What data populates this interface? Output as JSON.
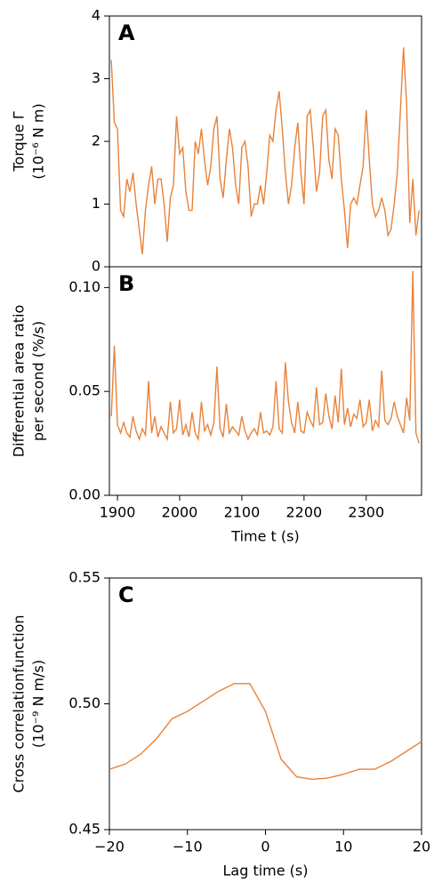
{
  "chart_data": [
    {
      "type": "line",
      "panel_label": "A",
      "ylabel": [
        "Torque Γ",
        "(10⁻⁶ N m)"
      ],
      "color": "#e8823a",
      "xlim": [
        1887,
        2389
      ],
      "ylim": [
        0,
        4
      ],
      "yticks": [
        0,
        1,
        2,
        3,
        4
      ],
      "x": [
        1890,
        1895,
        1900,
        1905,
        1910,
        1915,
        1920,
        1925,
        1930,
        1935,
        1940,
        1945,
        1950,
        1955,
        1960,
        1965,
        1970,
        1975,
        1980,
        1985,
        1990,
        1995,
        2000,
        2005,
        2010,
        2015,
        2020,
        2025,
        2030,
        2035,
        2040,
        2045,
        2050,
        2055,
        2060,
        2065,
        2070,
        2075,
        2080,
        2085,
        2090,
        2095,
        2100,
        2105,
        2110,
        2115,
        2120,
        2125,
        2130,
        2135,
        2140,
        2145,
        2150,
        2155,
        2160,
        2165,
        2170,
        2175,
        2180,
        2185,
        2190,
        2195,
        2200,
        2205,
        2210,
        2215,
        2220,
        2225,
        2230,
        2235,
        2240,
        2245,
        2250,
        2255,
        2260,
        2265,
        2270,
        2275,
        2280,
        2285,
        2290,
        2295,
        2300,
        2305,
        2310,
        2315,
        2320,
        2325,
        2330,
        2335,
        2340,
        2345,
        2350,
        2355,
        2360,
        2365,
        2370,
        2375,
        2380,
        2385
      ],
      "values": [
        3.3,
        2.3,
        2.2,
        0.9,
        0.8,
        1.4,
        1.2,
        1.5,
        1.0,
        0.6,
        0.2,
        0.9,
        1.3,
        1.6,
        1.0,
        1.4,
        1.4,
        1.0,
        0.4,
        1.1,
        1.3,
        2.4,
        1.8,
        1.9,
        1.2,
        0.9,
        0.9,
        2.0,
        1.8,
        2.2,
        1.7,
        1.3,
        1.6,
        2.2,
        2.4,
        1.4,
        1.1,
        1.7,
        2.2,
        1.9,
        1.3,
        1.0,
        1.9,
        2.0,
        1.6,
        0.8,
        1.0,
        1.0,
        1.3,
        1.0,
        1.5,
        2.1,
        2.0,
        2.5,
        2.8,
        2.2,
        1.5,
        1.0,
        1.3,
        1.9,
        2.3,
        1.5,
        1.0,
        2.4,
        2.5,
        1.9,
        1.2,
        1.5,
        2.4,
        2.5,
        1.7,
        1.4,
        2.2,
        2.1,
        1.4,
        0.9,
        0.3,
        1.0,
        1.1,
        1.0,
        1.3,
        1.6,
        2.5,
        1.7,
        1.0,
        0.8,
        0.9,
        1.1,
        0.9,
        0.5,
        0.6,
        1.0,
        1.5,
        2.5,
        3.5,
        2.6,
        0.7,
        1.4,
        0.5,
        0.9
      ]
    },
    {
      "type": "line",
      "panel_label": "B",
      "ylabel": [
        "Differential area ratio",
        "per second (%/s)"
      ],
      "xlabel": "Time t (s)",
      "color": "#e8823a",
      "xlim": [
        1887,
        2389
      ],
      "xticks": [
        1900,
        2000,
        2100,
        2200,
        2300
      ],
      "ylim": [
        0,
        0.11
      ],
      "yticks": [
        {
          "value": 0,
          "label": "0.00"
        },
        {
          "value": 0.05,
          "label": "0.05"
        },
        {
          "value": 0.1,
          "label": "0.10"
        }
      ],
      "x": [
        1890,
        1895,
        1900,
        1905,
        1910,
        1915,
        1920,
        1925,
        1930,
        1935,
        1940,
        1945,
        1950,
        1955,
        1960,
        1965,
        1970,
        1975,
        1980,
        1985,
        1990,
        1995,
        2000,
        2005,
        2010,
        2015,
        2020,
        2025,
        2030,
        2035,
        2040,
        2045,
        2050,
        2055,
        2060,
        2065,
        2070,
        2075,
        2080,
        2085,
        2090,
        2095,
        2100,
        2105,
        2110,
        2115,
        2120,
        2125,
        2130,
        2135,
        2140,
        2145,
        2150,
        2155,
        2160,
        2165,
        2170,
        2175,
        2180,
        2185,
        2190,
        2195,
        2200,
        2205,
        2210,
        2215,
        2220,
        2225,
        2230,
        2235,
        2240,
        2245,
        2250,
        2255,
        2260,
        2265,
        2270,
        2275,
        2280,
        2285,
        2290,
        2295,
        2300,
        2305,
        2310,
        2315,
        2320,
        2325,
        2330,
        2335,
        2340,
        2345,
        2350,
        2355,
        2360,
        2365,
        2370,
        2375,
        2380,
        2385
      ],
      "values": [
        0.038,
        0.072,
        0.034,
        0.03,
        0.035,
        0.03,
        0.028,
        0.038,
        0.031,
        0.027,
        0.032,
        0.029,
        0.055,
        0.03,
        0.038,
        0.028,
        0.033,
        0.03,
        0.027,
        0.045,
        0.03,
        0.032,
        0.046,
        0.029,
        0.034,
        0.028,
        0.04,
        0.03,
        0.027,
        0.045,
        0.031,
        0.034,
        0.029,
        0.035,
        0.062,
        0.032,
        0.028,
        0.044,
        0.03,
        0.033,
        0.031,
        0.029,
        0.038,
        0.031,
        0.027,
        0.03,
        0.032,
        0.029,
        0.04,
        0.03,
        0.031,
        0.029,
        0.033,
        0.055,
        0.032,
        0.03,
        0.064,
        0.045,
        0.035,
        0.03,
        0.045,
        0.031,
        0.03,
        0.04,
        0.036,
        0.033,
        0.052,
        0.034,
        0.035,
        0.049,
        0.038,
        0.032,
        0.048,
        0.035,
        0.061,
        0.034,
        0.042,
        0.033,
        0.039,
        0.037,
        0.046,
        0.033,
        0.035,
        0.046,
        0.031,
        0.036,
        0.033,
        0.06,
        0.036,
        0.034,
        0.037,
        0.045,
        0.038,
        0.034,
        0.03,
        0.047,
        0.036,
        0.108,
        0.03,
        0.025
      ]
    },
    {
      "type": "line",
      "panel_label": "C",
      "ylabel": [
        "Cross correlationfunction",
        "(10⁻⁹ N m/s)"
      ],
      "xlabel": "Lag time (s)",
      "color": "#e8823a",
      "xlim": [
        -20,
        20
      ],
      "xticks": [
        {
          "value": -20,
          "label": "−20"
        },
        {
          "value": -10,
          "label": "−10"
        },
        0,
        10,
        20
      ],
      "ylim": [
        0.45,
        0.55
      ],
      "yticks": [
        {
          "value": 0.45,
          "label": "0.45"
        },
        {
          "value": 0.5,
          "label": "0.50"
        },
        {
          "value": 0.55,
          "label": "0.55"
        }
      ],
      "x": [
        -20,
        -18,
        -16,
        -14,
        -12,
        -10,
        -8,
        -6,
        -4,
        -2,
        0,
        2,
        4,
        6,
        8,
        10,
        12,
        14,
        16,
        18,
        20
      ],
      "values": [
        0.474,
        0.476,
        0.48,
        0.486,
        0.494,
        0.497,
        0.501,
        0.505,
        0.508,
        0.508,
        0.497,
        0.478,
        0.471,
        0.47,
        0.4705,
        0.472,
        0.474,
        0.474,
        0.477,
        0.481,
        0.485
      ]
    }
  ]
}
